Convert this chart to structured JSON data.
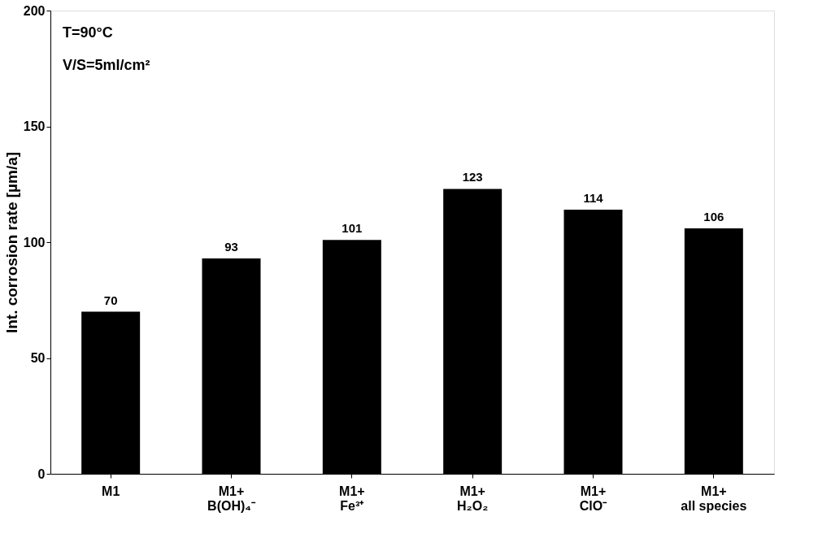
{
  "chart_data": {
    "type": "bar",
    "ylabel": "Int. corrosion rate [µm/a]",
    "categories": [
      "M1",
      "M1+\nB(OH)₄⁻",
      "M1+\nFe³⁺",
      "M1+\nH₂O₂",
      "M1+\nClO⁻",
      "M1+\nall species"
    ],
    "values": [
      70,
      93,
      101,
      123,
      114,
      106
    ],
    "color": "#000000",
    "ylim": [
      0,
      200
    ],
    "yticks": [
      0,
      50,
      100,
      150,
      200
    ],
    "grid": false,
    "data_labels": true,
    "annotations": [
      "T=90°C",
      "V/S=5ml/cm²"
    ]
  }
}
